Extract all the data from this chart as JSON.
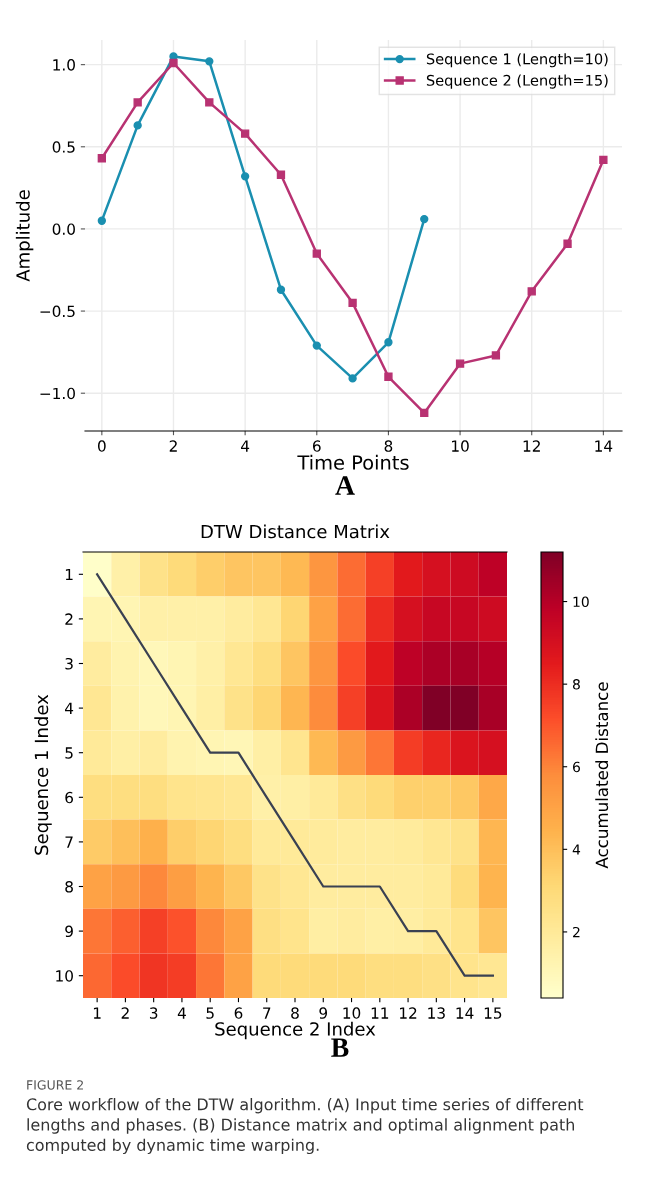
{
  "chart_data": [
    {
      "type": "line",
      "xlabel": "Time Points",
      "ylabel": "Amplitude",
      "annotations": [
        "A"
      ],
      "grid": true,
      "legend": "top right",
      "line_style": "solid",
      "xlim": [
        -0.47,
        14.52
      ],
      "xticks": [
        0,
        2,
        4,
        6,
        8,
        10,
        12,
        14
      ],
      "ylim": [
        -1.23,
        1.15
      ],
      "yticks": [
        {
          "value": -1.0,
          "label": "−1.0"
        },
        {
          "value": -0.5,
          "label": "−0.5"
        },
        {
          "value": 0.0,
          "label": "0.0"
        },
        {
          "value": 0.5,
          "label": "0.5"
        },
        {
          "value": 1.0,
          "label": "1.0"
        }
      ],
      "series": [
        {
          "name": "Sequence 1 (Length=10)",
          "color": "#1a8fb0",
          "marker": "circle",
          "x": [
            0,
            1,
            2,
            3,
            4,
            5,
            6,
            7,
            8,
            9
          ],
          "values": [
            0.05,
            0.63,
            1.05,
            1.02,
            0.32,
            -0.37,
            -0.71,
            -0.91,
            -0.69,
            0.06
          ]
        },
        {
          "name": "Sequence 2 (Length=15)",
          "color": "#b83272",
          "marker": "square",
          "x": [
            0,
            1,
            2,
            3,
            4,
            5,
            6,
            7,
            8,
            9,
            10,
            11,
            12,
            13,
            14
          ],
          "values": [
            0.43,
            0.77,
            1.01,
            0.77,
            0.58,
            0.33,
            -0.15,
            -0.45,
            -0.9,
            -1.12,
            -0.82,
            -0.77,
            -0.38,
            -0.09,
            0.42
          ]
        }
      ]
    },
    {
      "type": "heatmap",
      "title": "DTW Distance Matrix",
      "xlabel": "Sequence 2 Index",
      "ylabel": "Sequence 1 Index",
      "clabel": "Accumulated Distance",
      "annotations": [
        "B",
        "FIGURE 2",
        "Core workflow of the DTW algorithm. (A) Input time series of different lengths and phases. (B) Distance matrix and optimal alignment path computed by dynamic time warping."
      ],
      "categories": [
        "1",
        "2",
        "3",
        "4",
        "5",
        "6",
        "7",
        "8",
        "9",
        "10",
        "11",
        "12",
        "13",
        "14",
        "15"
      ],
      "y_categories": [
        "1",
        "2",
        "3",
        "4",
        "5",
        "6",
        "7",
        "8",
        "9",
        "10"
      ],
      "clim": [
        0.4,
        11.2
      ],
      "cticks": [
        2,
        4,
        6,
        8,
        10
      ],
      "cells": [
        [
          0.5,
          1.5,
          2.5,
          3.0,
          3.5,
          3.8,
          3.8,
          4.2,
          5.5,
          6.5,
          7.5,
          8.5,
          9.0,
          9.3,
          9.8
        ],
        [
          1.2,
          1.2,
          1.5,
          1.5,
          1.5,
          1.8,
          2.2,
          3.2,
          5.0,
          6.5,
          8.0,
          9.0,
          9.5,
          9.5,
          9.3
        ],
        [
          1.8,
          1.3,
          1.0,
          1.2,
          1.5,
          2.2,
          2.8,
          3.8,
          5.5,
          7.2,
          8.5,
          9.8,
          10.2,
          10.3,
          10.0
        ],
        [
          2.2,
          1.4,
          1.0,
          1.2,
          1.6,
          2.5,
          3.2,
          4.3,
          5.8,
          7.5,
          8.8,
          10.2,
          11.2,
          11.2,
          10.3
        ],
        [
          2.0,
          1.6,
          1.8,
          1.3,
          1.2,
          1.1,
          1.6,
          2.3,
          4.2,
          5.3,
          6.3,
          7.6,
          8.2,
          8.8,
          9.0
        ],
        [
          2.8,
          2.8,
          2.8,
          2.4,
          2.3,
          2.2,
          1.5,
          1.6,
          2.0,
          2.6,
          3.0,
          3.4,
          3.4,
          3.7,
          4.8
        ],
        [
          3.6,
          4.0,
          4.5,
          3.5,
          3.2,
          2.8,
          2.0,
          2.0,
          1.9,
          1.8,
          1.8,
          1.9,
          2.2,
          2.5,
          4.3
        ],
        [
          5.0,
          5.3,
          5.9,
          5.2,
          4.4,
          3.7,
          2.5,
          2.2,
          1.8,
          1.8,
          1.8,
          1.8,
          2.0,
          2.9,
          4.4
        ],
        [
          6.3,
          6.8,
          7.5,
          7.1,
          5.9,
          5.0,
          2.7,
          2.4,
          1.7,
          1.8,
          1.6,
          1.7,
          2.0,
          2.4,
          3.8
        ],
        [
          6.6,
          7.2,
          7.8,
          7.6,
          6.3,
          5.0,
          3.0,
          3.0,
          3.0,
          3.0,
          2.8,
          2.8,
          2.6,
          2.4,
          2.2
        ]
      ],
      "series": [
        {
          "type": "line",
          "color": "#3a4152",
          "values": [
            0,
            1,
            2,
            3,
            4,
            4,
            5,
            6,
            7,
            7,
            7,
            8,
            8,
            9,
            9
          ]
        }
      ]
    }
  ]
}
